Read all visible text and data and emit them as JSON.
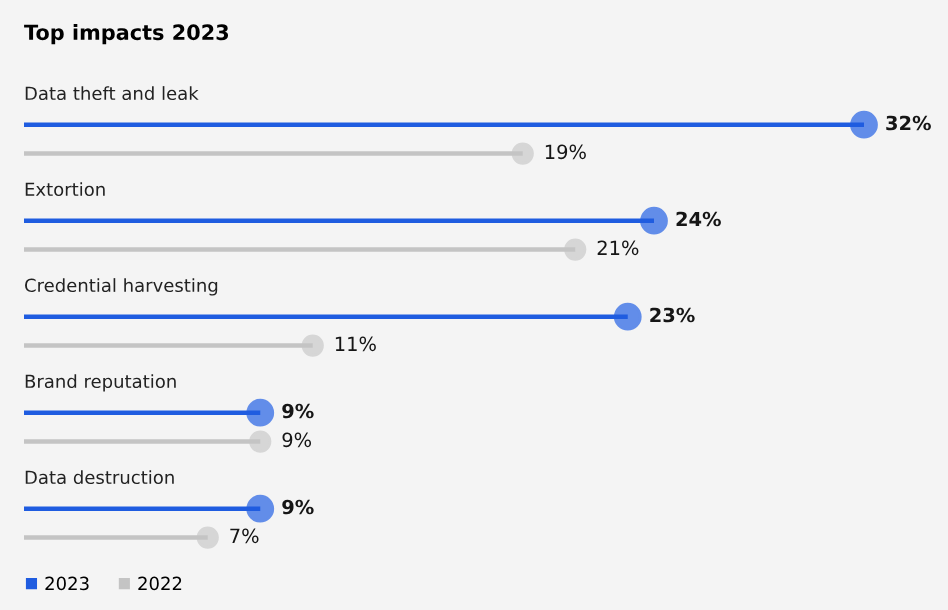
{
  "chart_data": {
    "type": "bar",
    "orientation": "horizontal",
    "title": "Top impacts 2023",
    "categories": [
      "Data theft and leak",
      "Extortion",
      "Credential harvesting",
      "Brand reputation",
      "Data destruction"
    ],
    "series": [
      {
        "name": "2023",
        "color": "#1f5ce0",
        "values": [
          32,
          24,
          23,
          9,
          9
        ],
        "value_labels": [
          "32%",
          "24%",
          "23%",
          "9%",
          "9%"
        ]
      },
      {
        "name": "2022",
        "color": "#c4c4c4",
        "values": [
          19,
          21,
          11,
          9,
          7
        ],
        "value_labels": [
          "19%",
          "21%",
          "11%",
          "9%",
          "7%"
        ]
      }
    ],
    "marker": "circle",
    "legend": "bottom left"
  }
}
